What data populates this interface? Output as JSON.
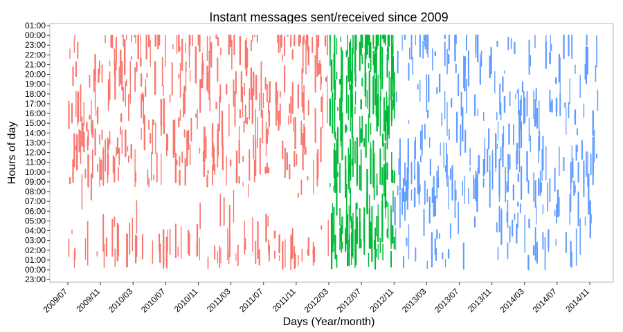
{
  "chart_data": {
    "type": "scatter",
    "title": "Instant messages sent/received since 2009",
    "xlabel": "Days (Year/month)",
    "ylabel": "Hours of day",
    "x_ticks": [
      "2009/07",
      "2009/11",
      "2010/03",
      "2010/07",
      "2010/11",
      "2011/03",
      "2011/07",
      "2011/11",
      "2012/03",
      "2012/07",
      "2012/11",
      "2013/03",
      "2013/07",
      "2013/11",
      "2014/03",
      "2014/07",
      "2014/11"
    ],
    "y_ticks": [
      "01:00",
      "00:00",
      "23:00",
      "22:00",
      "21:00",
      "20:00",
      "19:00",
      "18:00",
      "17:00",
      "16:00",
      "15:00",
      "14:00",
      "13:00",
      "12:00",
      "11:00",
      "10:00",
      "09:00",
      "08:00",
      "07:00",
      "06:00",
      "05:00",
      "04:00",
      "03:00",
      "02:00",
      "01:00",
      "00:00",
      "23:00"
    ],
    "ylim_hours": [
      -1,
      25
    ],
    "xlim": [
      "2009/05",
      "2014/12"
    ],
    "grid": false,
    "legend": "none",
    "series": [
      {
        "color": "#F8766D",
        "x_range": [
          "2009/07",
          "2012/02"
        ]
      },
      {
        "color": "#00BA38",
        "x_range": [
          "2012/03",
          "2012/10"
        ]
      },
      {
        "color": "#619CFF",
        "x_range": [
          "2012/11",
          "2014/11"
        ]
      }
    ]
  }
}
